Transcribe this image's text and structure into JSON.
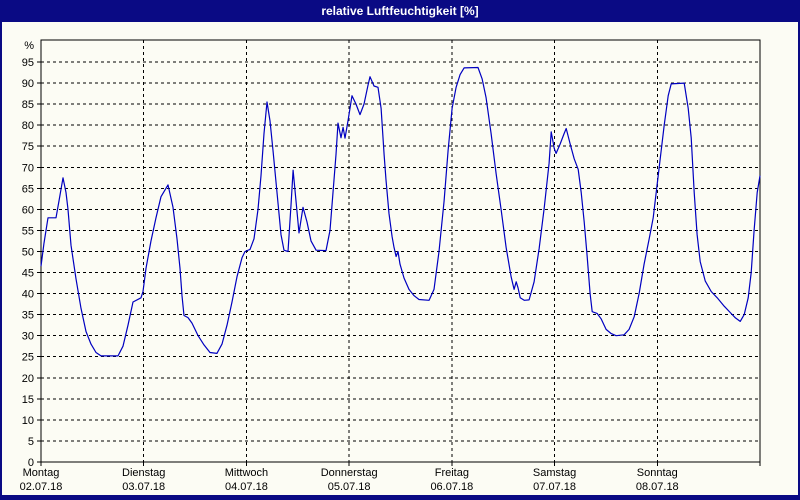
{
  "window": {
    "title": "relative Luftfeuchtigkeit [%]",
    "frame_color": "#0a0a84",
    "background_color": "#fcfcf4"
  },
  "chart_data": {
    "type": "line",
    "title": "relative Luftfeuchtigkeit [%]",
    "xlabel": "",
    "ylabel": "%",
    "ylim": [
      0,
      100
    ],
    "ytick_min": 0,
    "ytick_max": 95,
    "ytick_step": 5,
    "grid": true,
    "legend_position": "none",
    "line_color": "#0000c0",
    "x_unit": "days",
    "days": [
      {
        "label": "Montag",
        "date": "02.07.18"
      },
      {
        "label": "Dienstag",
        "date": "03.07.18"
      },
      {
        "label": "Mittwoch",
        "date": "04.07.18"
      },
      {
        "label": "Donnerstag",
        "date": "05.07.18"
      },
      {
        "label": "Freitag",
        "date": "06.07.18"
      },
      {
        "label": "Samstag",
        "date": "07.07.18"
      },
      {
        "label": "Sonntag",
        "date": "08.07.18"
      }
    ],
    "series": [
      {
        "name": "relative Luftfeuchtigkeit [%]",
        "points": [
          [
            0.0,
            46.5
          ],
          [
            0.029,
            52
          ],
          [
            0.068,
            58
          ],
          [
            0.146,
            58
          ],
          [
            0.175,
            62
          ],
          [
            0.214,
            67.5
          ],
          [
            0.243,
            64
          ],
          [
            0.263,
            60
          ],
          [
            0.292,
            51.5
          ],
          [
            0.341,
            43.5
          ],
          [
            0.389,
            36.5
          ],
          [
            0.438,
            31
          ],
          [
            0.487,
            28
          ],
          [
            0.535,
            26
          ],
          [
            0.584,
            25.2
          ],
          [
            0.75,
            25.2
          ],
          [
            0.798,
            27.5
          ],
          [
            0.847,
            32.5
          ],
          [
            0.896,
            38
          ],
          [
            0.974,
            39
          ],
          [
            0.993,
            40.5
          ],
          [
            1.022,
            46
          ],
          [
            1.071,
            52.5
          ],
          [
            1.12,
            58
          ],
          [
            1.168,
            63
          ],
          [
            1.236,
            65.8
          ],
          [
            1.285,
            60.5
          ],
          [
            1.324,
            53
          ],
          [
            1.353,
            46
          ],
          [
            1.373,
            39.5
          ],
          [
            1.392,
            34.8
          ],
          [
            1.431,
            34.3
          ],
          [
            1.47,
            33
          ],
          [
            1.529,
            30
          ],
          [
            1.587,
            27.8
          ],
          [
            1.645,
            26
          ],
          [
            1.713,
            25.8
          ],
          [
            1.762,
            28
          ],
          [
            1.811,
            32.5
          ],
          [
            1.86,
            38
          ],
          [
            1.908,
            44
          ],
          [
            1.957,
            48.5
          ],
          [
            1.986,
            50
          ],
          [
            2.035,
            50.5
          ],
          [
            2.074,
            53
          ],
          [
            2.113,
            60
          ],
          [
            2.142,
            68
          ],
          [
            2.171,
            78
          ],
          [
            2.2,
            85.5
          ],
          [
            2.229,
            81
          ],
          [
            2.259,
            74
          ],
          [
            2.298,
            64
          ],
          [
            2.337,
            54
          ],
          [
            2.366,
            50.3
          ],
          [
            2.405,
            50
          ],
          [
            2.434,
            61
          ],
          [
            2.454,
            69.3
          ],
          [
            2.483,
            62
          ],
          [
            2.512,
            54.4
          ],
          [
            2.551,
            60.5
          ],
          [
            2.59,
            57
          ],
          [
            2.629,
            52.5
          ],
          [
            2.678,
            50.3
          ],
          [
            2.775,
            50.2
          ],
          [
            2.814,
            55
          ],
          [
            2.843,
            64
          ],
          [
            2.872,
            73
          ],
          [
            2.892,
            80.5
          ],
          [
            2.921,
            77
          ],
          [
            2.941,
            79.5
          ],
          [
            2.96,
            76.9
          ],
          [
            2.989,
            81
          ],
          [
            3.028,
            87
          ],
          [
            3.067,
            85
          ],
          [
            3.106,
            82.5
          ],
          [
            3.145,
            85
          ],
          [
            3.184,
            89.5
          ],
          [
            3.203,
            91.5
          ],
          [
            3.242,
            89.3
          ],
          [
            3.281,
            89
          ],
          [
            3.311,
            84
          ],
          [
            3.34,
            73
          ],
          [
            3.359,
            67
          ],
          [
            3.388,
            59
          ],
          [
            3.418,
            53.5
          ],
          [
            3.437,
            51
          ],
          [
            3.457,
            48.8
          ],
          [
            3.476,
            50
          ],
          [
            3.495,
            47
          ],
          [
            3.534,
            43.7
          ],
          [
            3.583,
            41
          ],
          [
            3.632,
            39.5
          ],
          [
            3.68,
            38.6
          ],
          [
            3.778,
            38.4
          ],
          [
            3.826,
            41
          ],
          [
            3.875,
            50
          ],
          [
            3.924,
            62
          ],
          [
            3.963,
            74
          ],
          [
            4.002,
            84
          ],
          [
            4.041,
            89
          ],
          [
            4.08,
            92
          ],
          [
            4.119,
            93.6
          ],
          [
            4.255,
            93.7
          ],
          [
            4.294,
            91
          ],
          [
            4.333,
            86.5
          ],
          [
            4.382,
            78
          ],
          [
            4.431,
            68.5
          ],
          [
            4.479,
            60
          ],
          [
            4.528,
            51
          ],
          [
            4.577,
            44
          ],
          [
            4.606,
            41
          ],
          [
            4.626,
            42.8
          ],
          [
            4.645,
            41.3
          ],
          [
            4.665,
            39
          ],
          [
            4.704,
            38.4
          ],
          [
            4.752,
            38.5
          ],
          [
            4.801,
            42.8
          ],
          [
            4.85,
            50.8
          ],
          [
            4.899,
            60.3
          ],
          [
            4.947,
            71
          ],
          [
            4.967,
            78.4
          ],
          [
            4.996,
            74.5
          ],
          [
            5.015,
            73.3
          ],
          [
            5.054,
            75.5
          ],
          [
            5.093,
            78
          ],
          [
            5.113,
            79.2
          ],
          [
            5.152,
            75.5
          ],
          [
            5.191,
            72
          ],
          [
            5.23,
            69.5
          ],
          [
            5.259,
            64
          ],
          [
            5.288,
            57
          ],
          [
            5.317,
            49
          ],
          [
            5.346,
            40
          ],
          [
            5.366,
            35.7
          ],
          [
            5.414,
            35.3
          ],
          [
            5.453,
            34
          ],
          [
            5.502,
            31.5
          ],
          [
            5.551,
            30.5
          ],
          [
            5.599,
            30
          ],
          [
            5.677,
            30.2
          ],
          [
            5.726,
            31.5
          ],
          [
            5.775,
            34.5
          ],
          [
            5.823,
            40
          ],
          [
            5.872,
            47
          ],
          [
            5.921,
            53
          ],
          [
            5.96,
            58
          ],
          [
            5.989,
            64
          ],
          [
            6.028,
            72
          ],
          [
            6.067,
            80
          ],
          [
            6.106,
            87
          ],
          [
            6.135,
            89.8
          ],
          [
            6.262,
            90
          ],
          [
            6.301,
            84
          ],
          [
            6.33,
            77
          ],
          [
            6.359,
            64
          ],
          [
            6.388,
            54
          ],
          [
            6.418,
            47.6
          ],
          [
            6.466,
            43
          ],
          [
            6.525,
            40.5
          ],
          [
            6.583,
            39
          ],
          [
            6.651,
            37
          ],
          [
            6.71,
            35.5
          ],
          [
            6.758,
            34.3
          ],
          [
            6.807,
            33.4
          ],
          [
            6.846,
            35
          ],
          [
            6.885,
            39
          ],
          [
            6.914,
            45
          ],
          [
            6.943,
            55
          ],
          [
            6.973,
            64
          ],
          [
            7.0,
            68
          ]
        ]
      }
    ]
  }
}
